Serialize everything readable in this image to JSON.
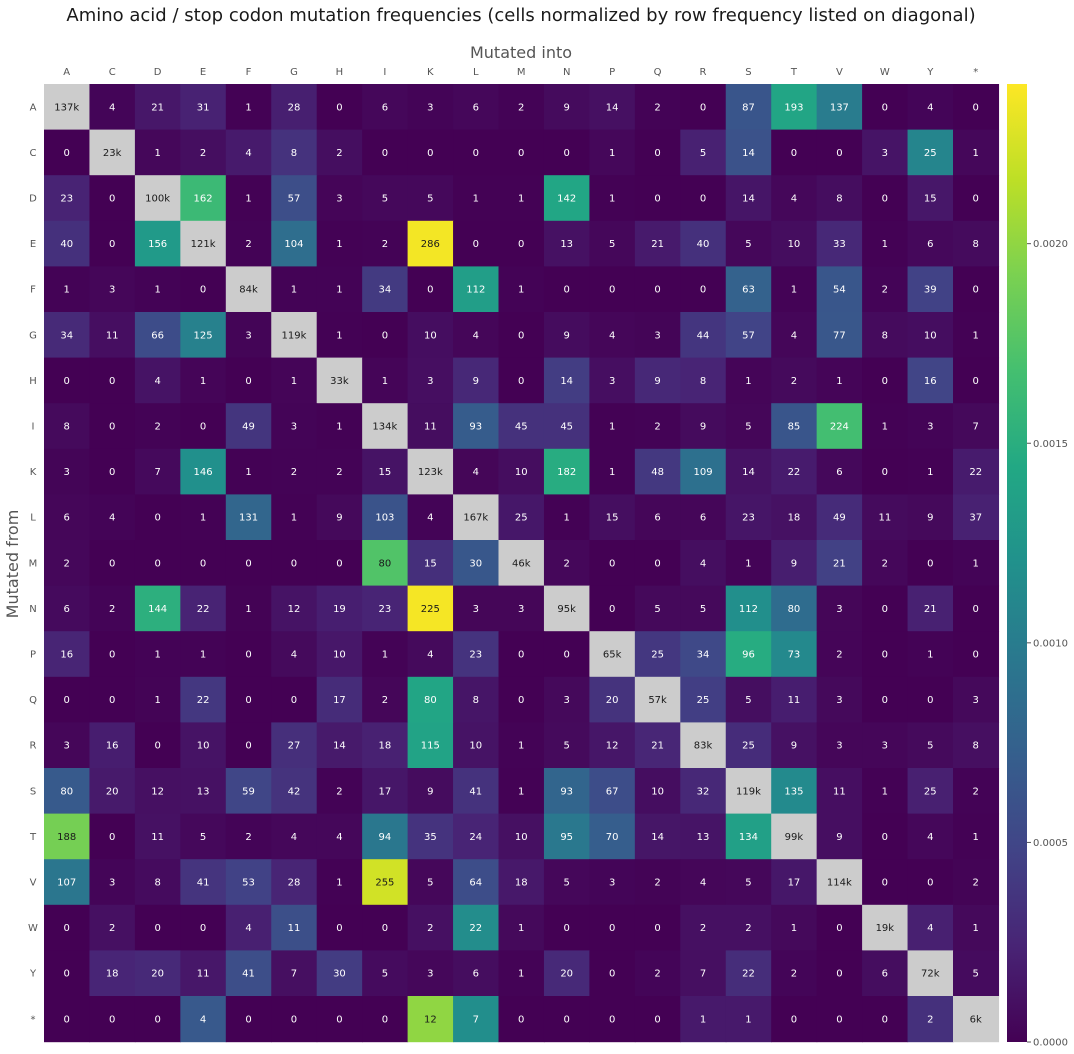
{
  "chart_data": {
    "type": "heatmap",
    "title": "Amino acid / stop codon mutation frequencies (cells normalized by row frequency listed on diagonal)",
    "xlabel": "Mutated into",
    "ylabel": "Mutated from",
    "x_categories": [
      "A",
      "C",
      "D",
      "E",
      "F",
      "G",
      "H",
      "I",
      "K",
      "L",
      "M",
      "N",
      "P",
      "Q",
      "R",
      "S",
      "T",
      "V",
      "W",
      "Y",
      "*"
    ],
    "y_categories": [
      "A",
      "C",
      "D",
      "E",
      "F",
      "G",
      "H",
      "I",
      "K",
      "L",
      "M",
      "N",
      "P",
      "Q",
      "R",
      "S",
      "T",
      "V",
      "W",
      "Y",
      "*"
    ],
    "cell_labels": [
      [
        "137k",
        "4",
        "21",
        "31",
        "1",
        "28",
        "0",
        "6",
        "3",
        "6",
        "2",
        "9",
        "14",
        "2",
        "0",
        "87",
        "193",
        "137",
        "0",
        "4",
        "0"
      ],
      [
        "0",
        "23k",
        "1",
        "2",
        "4",
        "8",
        "2",
        "0",
        "0",
        "0",
        "0",
        "0",
        "1",
        "0",
        "5",
        "14",
        "0",
        "0",
        "3",
        "25",
        "1"
      ],
      [
        "23",
        "0",
        "100k",
        "162",
        "1",
        "57",
        "3",
        "5",
        "5",
        "1",
        "1",
        "142",
        "1",
        "0",
        "0",
        "14",
        "4",
        "8",
        "0",
        "15",
        "0"
      ],
      [
        "40",
        "0",
        "156",
        "121k",
        "2",
        "104",
        "1",
        "2",
        "286",
        "0",
        "0",
        "13",
        "5",
        "21",
        "40",
        "5",
        "10",
        "33",
        "1",
        "6",
        "8"
      ],
      [
        "1",
        "3",
        "1",
        "0",
        "84k",
        "1",
        "1",
        "34",
        "0",
        "112",
        "1",
        "0",
        "0",
        "0",
        "0",
        "63",
        "1",
        "54",
        "2",
        "39",
        "0"
      ],
      [
        "34",
        "11",
        "66",
        "125",
        "3",
        "119k",
        "1",
        "0",
        "10",
        "4",
        "0",
        "9",
        "4",
        "3",
        "44",
        "57",
        "4",
        "77",
        "8",
        "10",
        "1"
      ],
      [
        "0",
        "0",
        "4",
        "1",
        "0",
        "1",
        "33k",
        "1",
        "3",
        "9",
        "0",
        "14",
        "3",
        "9",
        "8",
        "1",
        "2",
        "1",
        "0",
        "16",
        "0"
      ],
      [
        "8",
        "0",
        "2",
        "0",
        "49",
        "3",
        "1",
        "134k",
        "11",
        "93",
        "45",
        "45",
        "1",
        "2",
        "9",
        "5",
        "85",
        "224",
        "1",
        "3",
        "7"
      ],
      [
        "3",
        "0",
        "7",
        "146",
        "1",
        "2",
        "2",
        "15",
        "123k",
        "4",
        "10",
        "182",
        "1",
        "48",
        "109",
        "14",
        "22",
        "6",
        "0",
        "1",
        "22"
      ],
      [
        "6",
        "4",
        "0",
        "1",
        "131",
        "1",
        "9",
        "103",
        "4",
        "167k",
        "25",
        "1",
        "15",
        "6",
        "6",
        "23",
        "18",
        "49",
        "11",
        "9",
        "37"
      ],
      [
        "2",
        "0",
        "0",
        "0",
        "0",
        "0",
        "0",
        "80",
        "15",
        "30",
        "46k",
        "2",
        "0",
        "0",
        "4",
        "1",
        "9",
        "21",
        "2",
        "0",
        "1"
      ],
      [
        "6",
        "2",
        "144",
        "22",
        "1",
        "12",
        "19",
        "23",
        "225",
        "3",
        "3",
        "95k",
        "0",
        "5",
        "5",
        "112",
        "80",
        "3",
        "0",
        "21",
        "0"
      ],
      [
        "16",
        "0",
        "1",
        "1",
        "0",
        "4",
        "10",
        "1",
        "4",
        "23",
        "0",
        "0",
        "65k",
        "25",
        "34",
        "96",
        "73",
        "2",
        "0",
        "1",
        "0"
      ],
      [
        "0",
        "0",
        "1",
        "22",
        "0",
        "0",
        "17",
        "2",
        "80",
        "8",
        "0",
        "3",
        "20",
        "57k",
        "25",
        "5",
        "11",
        "3",
        "0",
        "0",
        "3"
      ],
      [
        "3",
        "16",
        "0",
        "10",
        "0",
        "27",
        "14",
        "18",
        "115",
        "10",
        "1",
        "5",
        "12",
        "21",
        "83k",
        "25",
        "9",
        "3",
        "3",
        "5",
        "8"
      ],
      [
        "80",
        "20",
        "12",
        "13",
        "59",
        "42",
        "2",
        "17",
        "9",
        "41",
        "1",
        "93",
        "67",
        "10",
        "32",
        "119k",
        "135",
        "11",
        "1",
        "25",
        "2"
      ],
      [
        "188",
        "0",
        "11",
        "5",
        "2",
        "4",
        "4",
        "94",
        "35",
        "24",
        "10",
        "95",
        "70",
        "14",
        "13",
        "134",
        "99k",
        "9",
        "0",
        "4",
        "1"
      ],
      [
        "107",
        "3",
        "8",
        "41",
        "53",
        "28",
        "1",
        "255",
        "5",
        "64",
        "18",
        "5",
        "3",
        "2",
        "4",
        "5",
        "17",
        "114k",
        "0",
        "0",
        "2"
      ],
      [
        "0",
        "2",
        "0",
        "0",
        "4",
        "11",
        "0",
        "0",
        "2",
        "22",
        "1",
        "0",
        "0",
        "0",
        "2",
        "2",
        "1",
        "0",
        "19k",
        "4",
        "1"
      ],
      [
        "0",
        "18",
        "20",
        "11",
        "41",
        "7",
        "30",
        "5",
        "3",
        "6",
        "1",
        "20",
        "0",
        "2",
        "7",
        "22",
        "2",
        "0",
        "6",
        "72k",
        "5"
      ],
      [
        "0",
        "0",
        "0",
        "4",
        "0",
        "0",
        "0",
        "0",
        "12",
        "7",
        "0",
        "0",
        "0",
        "0",
        "1",
        "1",
        "0",
        "0",
        "0",
        "2",
        "6k"
      ]
    ],
    "row_totals": [
      137000,
      23000,
      100000,
      121000,
      84000,
      119000,
      33000,
      134000,
      123000,
      167000,
      46000,
      95000,
      65000,
      57000,
      83000,
      119000,
      99000,
      114000,
      19000,
      72000,
      6000
    ],
    "diagonal_color": "#cccccc",
    "colormap": "viridis",
    "colorbar": {
      "range": [
        0.0,
        0.0024
      ],
      "ticks": [
        0.0,
        0.0005,
        0.001,
        0.0015,
        0.002
      ],
      "tick_labels": [
        "0.0000",
        "0.0005",
        "0.0010",
        "0.0015",
        "0.0020"
      ]
    }
  }
}
